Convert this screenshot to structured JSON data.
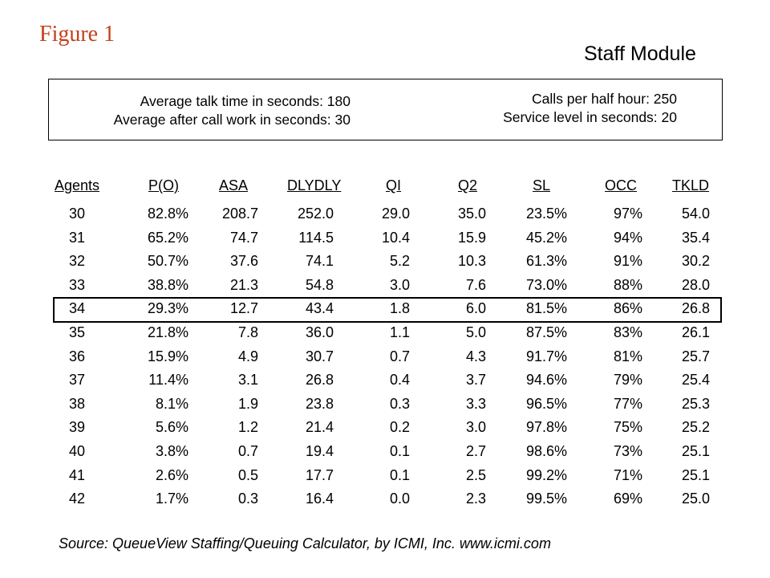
{
  "figure_title": "Figure 1",
  "module_title": "Staff Module",
  "params": {
    "talk_time": "Average talk time in seconds: 180",
    "acw": "Average after call work in seconds: 30",
    "calls": "Calls per half hour: 250",
    "service_level": "Service level in seconds: 20"
  },
  "table": {
    "headers": [
      "Agents",
      "P(O)",
      "ASA",
      "DLYDLY",
      "QI",
      "Q2",
      "SL",
      "OCC",
      "TKLD"
    ],
    "highlighted_agents": "34",
    "rows": [
      [
        "30",
        "82.8%",
        "208.7",
        "252.0",
        "29.0",
        "35.0",
        "23.5%",
        "97%",
        "54.0"
      ],
      [
        "31",
        "65.2%",
        "74.7",
        "114.5",
        "10.4",
        "15.9",
        "45.2%",
        "94%",
        "35.4"
      ],
      [
        "32",
        "50.7%",
        "37.6",
        "74.1",
        "5.2",
        "10.3",
        "61.3%",
        "91%",
        "30.2"
      ],
      [
        "33",
        "38.8%",
        "21.3",
        "54.8",
        "3.0",
        "7.6",
        "73.0%",
        "88%",
        "28.0"
      ],
      [
        "34",
        "29.3%",
        "12.7",
        "43.4",
        "1.8",
        "6.0",
        "81.5%",
        "86%",
        "26.8"
      ],
      [
        "35",
        "21.8%",
        "7.8",
        "36.0",
        "1.1",
        "5.0",
        "87.5%",
        "83%",
        "26.1"
      ],
      [
        "36",
        "15.9%",
        "4.9",
        "30.7",
        "0.7",
        "4.3",
        "91.7%",
        "81%",
        "25.7"
      ],
      [
        "37",
        "11.4%",
        "3.1",
        "26.8",
        "0.4",
        "3.7",
        "94.6%",
        "79%",
        "25.4"
      ],
      [
        "38",
        "8.1%",
        "1.9",
        "23.8",
        "0.3",
        "3.3",
        "96.5%",
        "77%",
        "25.3"
      ],
      [
        "39",
        "5.6%",
        "1.2",
        "21.4",
        "0.2",
        "3.0",
        "97.8%",
        "75%",
        "25.2"
      ],
      [
        "40",
        "3.8%",
        "0.7",
        "19.4",
        "0.1",
        "2.7",
        "98.6%",
        "73%",
        "25.1"
      ],
      [
        "41",
        "2.6%",
        "0.5",
        "17.7",
        "0.1",
        "2.5",
        "99.2%",
        "71%",
        "25.1"
      ],
      [
        "42",
        "1.7%",
        "0.3",
        "16.4",
        "0.0",
        "2.3",
        "99.5%",
        "69%",
        "25.0"
      ]
    ]
  },
  "source": "Source: QueueView Staffing/Queuing Calculator, by ICMI, Inc.  www.icmi.com"
}
